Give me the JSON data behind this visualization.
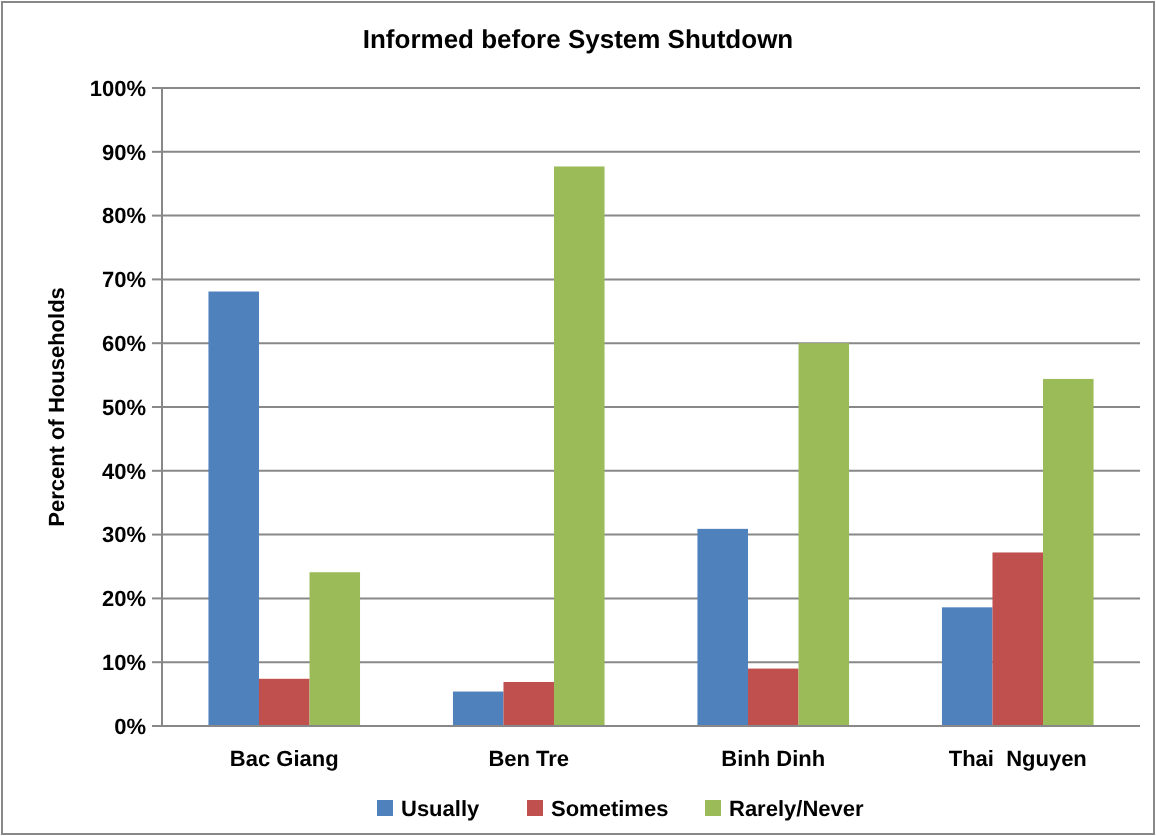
{
  "chart_data": {
    "type": "bar",
    "title": "Informed before System Shutdown",
    "ylabel": "Percent of Households",
    "categories": [
      "Bac Giang",
      "Ben Tre",
      "Binh Dinh",
      "Thai  Nguyen"
    ],
    "series": [
      {
        "name": "Usually",
        "color": "#4f81bd",
        "values": [
          68.1,
          5.4,
          30.9,
          18.6
        ]
      },
      {
        "name": "Sometimes",
        "color": "#c0504d",
        "values": [
          7.4,
          6.9,
          9.0,
          27.2
        ]
      },
      {
        "name": "Rarely/Never",
        "color": "#9bbb59",
        "values": [
          24.1,
          87.7,
          60,
          54.4
        ]
      }
    ],
    "ylim": [
      0,
      100
    ],
    "yticks": [
      {
        "value": 0,
        "label": "0%"
      },
      {
        "value": 10,
        "label": "10%"
      },
      {
        "value": 20,
        "label": "20%"
      },
      {
        "value": 30,
        "label": "30%"
      },
      {
        "value": 40,
        "label": "40%"
      },
      {
        "value": 50,
        "label": "50%"
      },
      {
        "value": 60,
        "label": "60%"
      },
      {
        "value": 70,
        "label": "70%"
      },
      {
        "value": 80,
        "label": "80%"
      },
      {
        "value": 90,
        "label": "90%"
      },
      {
        "value": 100,
        "label": "100%"
      }
    ],
    "grid": "y",
    "legend": "bottom"
  }
}
